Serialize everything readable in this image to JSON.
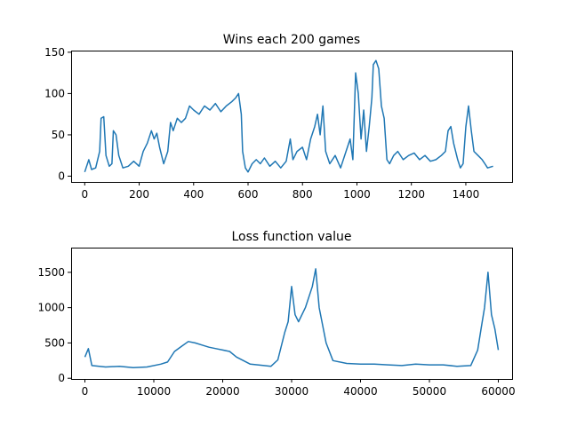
{
  "chart_data": [
    {
      "type": "line",
      "title": "Wins each 200 games",
      "xlabel": "",
      "ylabel": "",
      "xlim": [
        -50,
        1570
      ],
      "ylim": [
        -7,
        152
      ],
      "xticks": [
        0,
        200,
        400,
        600,
        800,
        1000,
        1200,
        1400
      ],
      "yticks": [
        0,
        50,
        100,
        150
      ],
      "grid": false,
      "color": "#1f77b4",
      "series": [
        {
          "values_xy": [
            [
              0,
              5
            ],
            [
              15,
              20
            ],
            [
              25,
              8
            ],
            [
              40,
              10
            ],
            [
              55,
              30
            ],
            [
              60,
              70
            ],
            [
              70,
              72
            ],
            [
              78,
              25
            ],
            [
              90,
              12
            ],
            [
              100,
              15
            ],
            [
              105,
              55
            ],
            [
              115,
              50
            ],
            [
              125,
              25
            ],
            [
              140,
              10
            ],
            [
              160,
              12
            ],
            [
              180,
              18
            ],
            [
              200,
              12
            ],
            [
              215,
              30
            ],
            [
              230,
              40
            ],
            [
              245,
              55
            ],
            [
              255,
              45
            ],
            [
              265,
              52
            ],
            [
              275,
              35
            ],
            [
              290,
              15
            ],
            [
              305,
              30
            ],
            [
              315,
              65
            ],
            [
              325,
              55
            ],
            [
              340,
              70
            ],
            [
              355,
              65
            ],
            [
              370,
              70
            ],
            [
              385,
              85
            ],
            [
              400,
              80
            ],
            [
              420,
              75
            ],
            [
              440,
              85
            ],
            [
              460,
              80
            ],
            [
              480,
              88
            ],
            [
              500,
              78
            ],
            [
              520,
              85
            ],
            [
              540,
              90
            ],
            [
              555,
              95
            ],
            [
              565,
              100
            ],
            [
              575,
              75
            ],
            [
              580,
              30
            ],
            [
              590,
              10
            ],
            [
              600,
              5
            ],
            [
              615,
              15
            ],
            [
              630,
              20
            ],
            [
              645,
              15
            ],
            [
              660,
              22
            ],
            [
              680,
              12
            ],
            [
              700,
              18
            ],
            [
              720,
              10
            ],
            [
              740,
              18
            ],
            [
              755,
              45
            ],
            [
              765,
              20
            ],
            [
              780,
              30
            ],
            [
              800,
              35
            ],
            [
              815,
              20
            ],
            [
              830,
              45
            ],
            [
              845,
              60
            ],
            [
              855,
              75
            ],
            [
              865,
              50
            ],
            [
              875,
              85
            ],
            [
              885,
              30
            ],
            [
              900,
              15
            ],
            [
              920,
              25
            ],
            [
              940,
              10
            ],
            [
              960,
              30
            ],
            [
              975,
              45
            ],
            [
              985,
              20
            ],
            [
              995,
              125
            ],
            [
              1005,
              100
            ],
            [
              1015,
              45
            ],
            [
              1025,
              80
            ],
            [
              1035,
              30
            ],
            [
              1045,
              60
            ],
            [
              1055,
              95
            ],
            [
              1060,
              135
            ],
            [
              1070,
              140
            ],
            [
              1080,
              130
            ],
            [
              1090,
              85
            ],
            [
              1100,
              70
            ],
            [
              1110,
              20
            ],
            [
              1120,
              15
            ],
            [
              1135,
              25
            ],
            [
              1150,
              30
            ],
            [
              1170,
              20
            ],
            [
              1190,
              25
            ],
            [
              1210,
              28
            ],
            [
              1230,
              20
            ],
            [
              1250,
              25
            ],
            [
              1270,
              18
            ],
            [
              1290,
              20
            ],
            [
              1310,
              25
            ],
            [
              1325,
              30
            ],
            [
              1335,
              55
            ],
            [
              1345,
              60
            ],
            [
              1355,
              40
            ],
            [
              1370,
              20
            ],
            [
              1380,
              10
            ],
            [
              1390,
              15
            ],
            [
              1400,
              60
            ],
            [
              1410,
              85
            ],
            [
              1420,
              55
            ],
            [
              1430,
              30
            ],
            [
              1445,
              25
            ],
            [
              1460,
              20
            ],
            [
              1470,
              15
            ],
            [
              1480,
              10
            ],
            [
              1500,
              12
            ]
          ]
        }
      ]
    },
    {
      "type": "line",
      "title": "Loss function value",
      "xlabel": "",
      "ylabel": "",
      "xlim": [
        -2000,
        62000
      ],
      "ylim": [
        -10,
        1850
      ],
      "xticks": [
        0,
        10000,
        20000,
        30000,
        40000,
        50000,
        60000
      ],
      "yticks": [
        0,
        500,
        1000,
        1500
      ],
      "grid": false,
      "color": "#1f77b4",
      "series": [
        {
          "values_xy": [
            [
              0,
              300
            ],
            [
              500,
              420
            ],
            [
              1000,
              180
            ],
            [
              3000,
              160
            ],
            [
              5000,
              170
            ],
            [
              7000,
              150
            ],
            [
              9000,
              160
            ],
            [
              11000,
              200
            ],
            [
              12000,
              230
            ],
            [
              13000,
              380
            ],
            [
              14000,
              450
            ],
            [
              15000,
              520
            ],
            [
              16000,
              500
            ],
            [
              17000,
              470
            ],
            [
              18000,
              440
            ],
            [
              19000,
              420
            ],
            [
              20000,
              400
            ],
            [
              21000,
              380
            ],
            [
              22000,
              300
            ],
            [
              24000,
              200
            ],
            [
              26000,
              180
            ],
            [
              27000,
              170
            ],
            [
              28000,
              260
            ],
            [
              29000,
              650
            ],
            [
              29500,
              800
            ],
            [
              30000,
              1300
            ],
            [
              30500,
              900
            ],
            [
              31000,
              800
            ],
            [
              32000,
              1000
            ],
            [
              33000,
              1300
            ],
            [
              33500,
              1550
            ],
            [
              34000,
              1000
            ],
            [
              35000,
              500
            ],
            [
              36000,
              250
            ],
            [
              38000,
              210
            ],
            [
              40000,
              200
            ],
            [
              42000,
              200
            ],
            [
              44000,
              190
            ],
            [
              46000,
              180
            ],
            [
              48000,
              200
            ],
            [
              50000,
              190
            ],
            [
              52000,
              190
            ],
            [
              54000,
              170
            ],
            [
              56000,
              180
            ],
            [
              57000,
              400
            ],
            [
              57500,
              700
            ],
            [
              58000,
              1000
            ],
            [
              58500,
              1500
            ],
            [
              59000,
              900
            ],
            [
              59500,
              700
            ],
            [
              60000,
              400
            ]
          ]
        }
      ]
    }
  ],
  "tick_text": {
    "top_x": [
      "0",
      "200",
      "400",
      "600",
      "800",
      "1000",
      "1200",
      "1400"
    ],
    "top_y": [
      "0",
      "50",
      "100",
      "150"
    ],
    "bottom_x": [
      "0",
      "10000",
      "20000",
      "30000",
      "40000",
      "50000",
      "60000"
    ],
    "bottom_y": [
      "0",
      "500",
      "1000",
      "1500"
    ]
  }
}
